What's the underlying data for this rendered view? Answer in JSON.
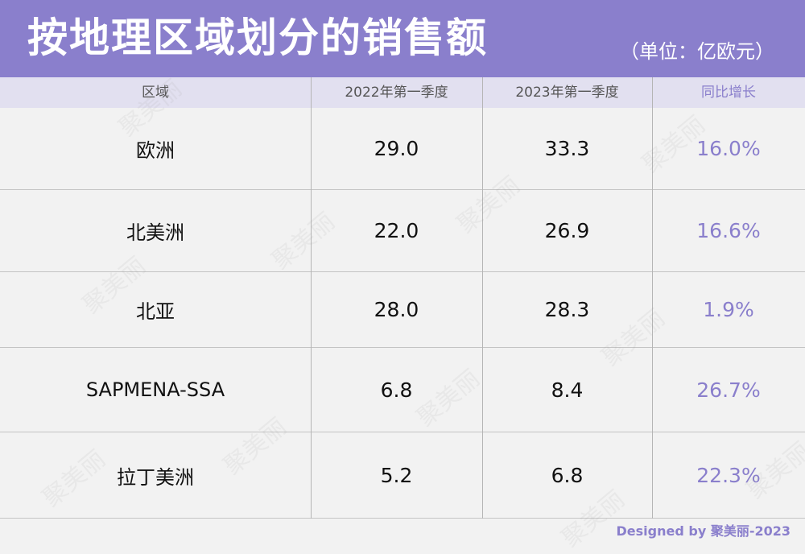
{
  "header": {
    "title": "按地理区域划分的销售额",
    "unit": "（单位：亿欧元）",
    "color": "#8a7fcc"
  },
  "table": {
    "columns": [
      "区域",
      "2022年第一季度",
      "2023年第一季度",
      "同比增长"
    ],
    "rows": [
      {
        "region": "欧洲",
        "q1_2022": "29.0",
        "q1_2023": "33.3",
        "growth": "16.0%"
      },
      {
        "region": "北美洲",
        "q1_2022": "22.0",
        "q1_2023": "26.9",
        "growth": "16.6%"
      },
      {
        "region": "北亚",
        "q1_2022": "28.0",
        "q1_2023": "28.3",
        "growth": "1.9%"
      },
      {
        "region": "SAPMENA-SSA",
        "q1_2022": "6.8",
        "q1_2023": "8.4",
        "growth": "26.7%"
      },
      {
        "region": "拉丁美洲",
        "q1_2022": "5.2",
        "q1_2023": "6.8",
        "growth": "22.3%"
      }
    ]
  },
  "footer": {
    "credit": "Designed by 聚美丽-2023"
  },
  "watermark": {
    "text": "聚美丽"
  }
}
